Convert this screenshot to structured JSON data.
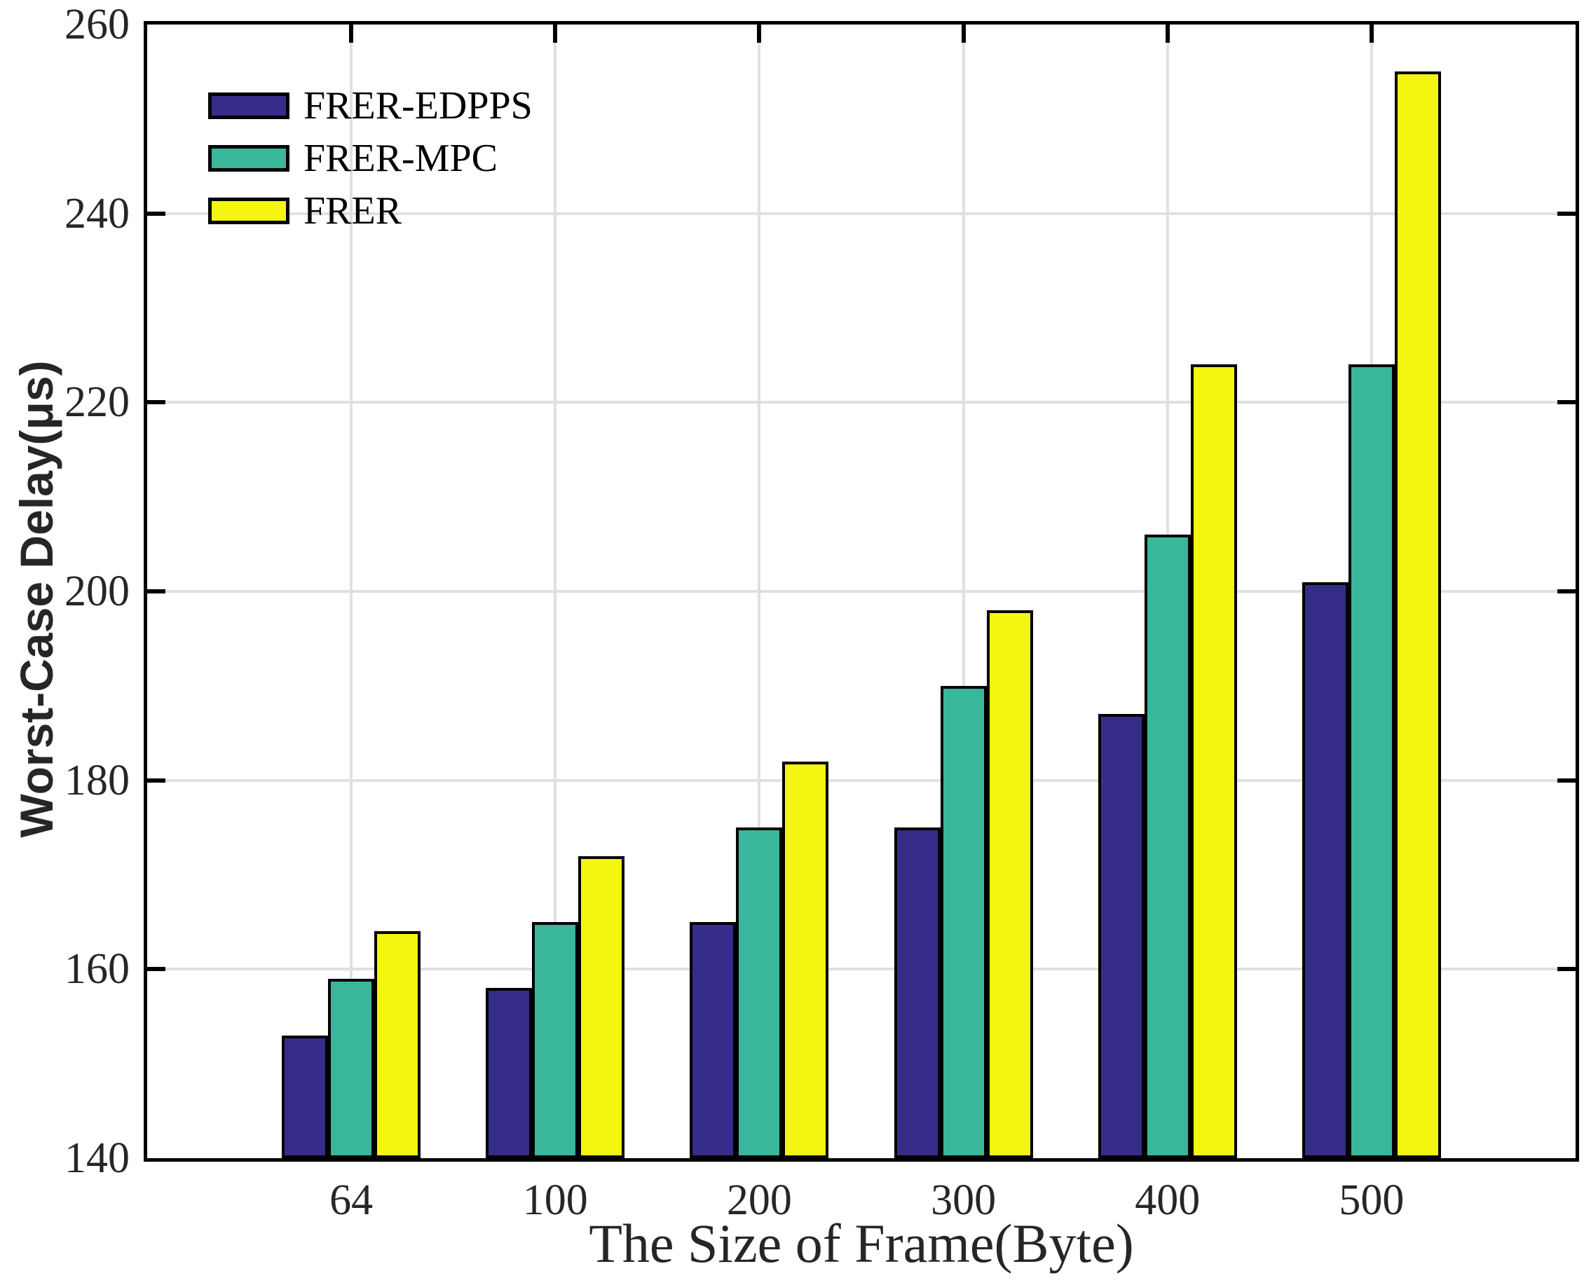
{
  "chart_data": {
    "type": "bar",
    "title": "",
    "xlabel": "The Size of Frame(Byte)",
    "ylabel": "Worst-Case Delay(μs)",
    "categories": [
      "64",
      "100",
      "200",
      "300",
      "400",
      "500"
    ],
    "series": [
      {
        "name": "FRER-EDPPS",
        "color": "#352d87",
        "values": [
          153,
          158,
          165,
          175,
          187,
          201
        ]
      },
      {
        "name": "FRER-MPC",
        "color": "#3ab79a",
        "values": [
          159,
          165,
          175,
          190,
          206,
          224
        ]
      },
      {
        "name": "FRER",
        "color": "#f5f512",
        "values": [
          164,
          172,
          182,
          198,
          224,
          255
        ]
      }
    ],
    "ylim": [
      140,
      260
    ],
    "yticks": [
      140,
      160,
      180,
      200,
      220,
      240,
      260
    ],
    "grid": true,
    "legend_position": "top-left",
    "colors": {
      "grid": "#e0e0e0",
      "axis": "#000000",
      "text": "#262626",
      "background": "#ffffff"
    }
  }
}
